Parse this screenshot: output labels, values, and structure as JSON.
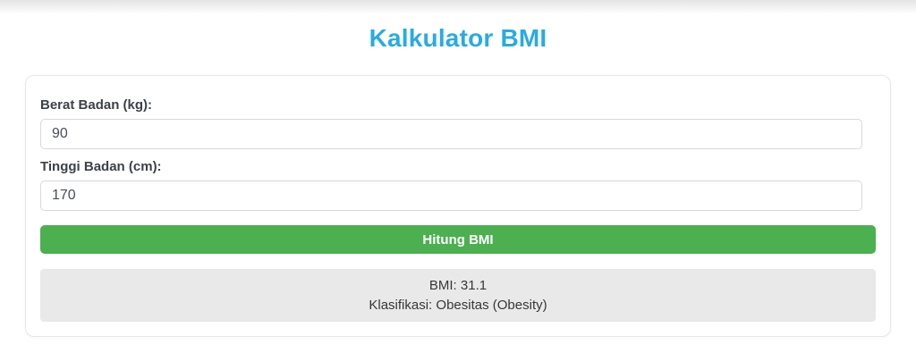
{
  "page": {
    "title": "Kalkulator BMI"
  },
  "form": {
    "weight": {
      "label": "Berat Badan (kg):",
      "value": "90"
    },
    "height": {
      "label": "Tinggi Badan (cm):",
      "value": "170"
    },
    "submit_label": "Hitung BMI"
  },
  "result": {
    "bmi_line": "BMI: 31.1",
    "classification_line": "Klasifikasi: Obesitas (Obesity)"
  },
  "colors": {
    "title_color": "#29abe2",
    "button_bg": "#4caf50",
    "result_bg": "#e9e9e9"
  }
}
